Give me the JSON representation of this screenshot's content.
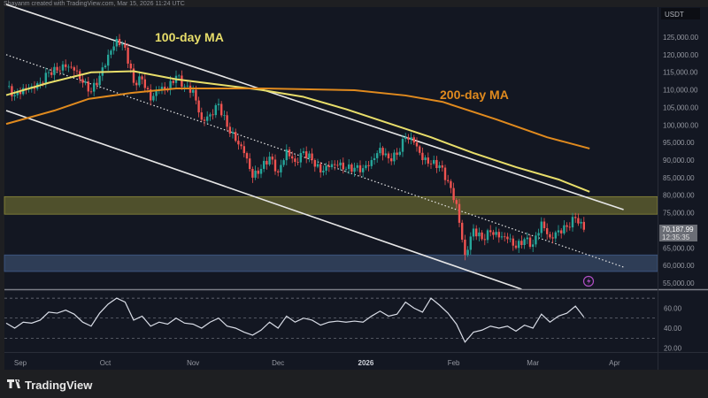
{
  "header": {
    "caption": "Shayanm created with TradingView.com, Mar 15, 2026 11:24 UTC"
  },
  "footer": {
    "brand": "TradingView",
    "logo_icon": "tradingview-logo-icon"
  },
  "colors": {
    "bg": "#131722",
    "up": "#26a69a",
    "down": "#ef5350",
    "ma100": "#e8de6a",
    "ma200": "#e08a1e",
    "resistance_zone": "#5a5a2e",
    "support_zone": "#34445f",
    "trendline": "#e6e6e6"
  },
  "chart_data": {
    "type": "candlestick",
    "symbol_currency": "USDT",
    "day0": "Aug 27, 2025",
    "sample_step_days": 3,
    "closes": [
      111000,
      108500,
      110500,
      111000,
      112000,
      115000,
      115500,
      116500,
      115500,
      112000,
      109500,
      114000,
      120000,
      124500,
      122000,
      112000,
      113000,
      107000,
      110000,
      110000,
      114000,
      111000,
      110000,
      101500,
      103000,
      106000,
      99500,
      95500,
      92000,
      85000,
      87500,
      91000,
      86500,
      93000,
      89500,
      92500,
      90000,
      86500,
      88000,
      88500,
      87500,
      87800,
      87700,
      90000,
      93500,
      90500,
      91500,
      96500,
      95000,
      90000,
      89000,
      88500,
      84000,
      77500,
      63000,
      70500,
      67500,
      69500,
      68000,
      67500,
      65000,
      67500,
      66000,
      72500,
      68000,
      70000,
      71000,
      73500,
      70187.99
    ],
    "moving_averages": [
      {
        "name": "100-day MA",
        "label": "100-day MA",
        "points": [
          [
            0,
            108500
          ],
          [
            15,
            112000
          ],
          [
            30,
            115000
          ],
          [
            45,
            115300
          ],
          [
            60,
            113000
          ],
          [
            75,
            111500
          ],
          [
            90,
            110000
          ],
          [
            105,
            108000
          ],
          [
            120,
            104500
          ],
          [
            135,
            100500
          ],
          [
            150,
            96500
          ],
          [
            165,
            92000
          ],
          [
            180,
            88000
          ],
          [
            195,
            84500
          ],
          [
            206,
            81000
          ]
        ]
      },
      {
        "name": "200-day MA",
        "label": "200-day MA",
        "points": [
          [
            0,
            100300
          ],
          [
            17,
            104100
          ],
          [
            29,
            107400
          ],
          [
            44,
            109100
          ],
          [
            60,
            110400
          ],
          [
            91,
            110400
          ],
          [
            123,
            109900
          ],
          [
            141,
            108400
          ],
          [
            154,
            106600
          ],
          [
            173,
            101600
          ],
          [
            191,
            96500
          ],
          [
            206,
            93300
          ]
        ]
      }
    ],
    "trendlines": [
      {
        "name": "channel-upper",
        "style": "solid",
        "from": [
          0,
          134300
        ],
        "to": [
          218,
          75900
        ]
      },
      {
        "name": "channel-lower",
        "style": "solid",
        "from": [
          0,
          104100
        ],
        "to": [
          182,
          53250
        ]
      },
      {
        "name": "channel-mid",
        "style": "dotted",
        "from": [
          0,
          120000
        ],
        "to": [
          218,
          59550
        ]
      }
    ],
    "zones": [
      {
        "name": "resistance-zone",
        "low": 74600,
        "high": 79600
      },
      {
        "name": "support-zone",
        "low": 58300,
        "high": 63000
      }
    ],
    "price_axis": {
      "ticks": [
        "125,000.00",
        "120,000.00",
        "115,000.00",
        "110,000.00",
        "105,000.00",
        "100,000.00",
        "95,000.00",
        "90,000.00",
        "85,000.00",
        "80,000.00",
        "75,000.00",
        "65,000.00",
        "60,000.00",
        "55,000.00"
      ],
      "tick_values": [
        125000,
        120000,
        115000,
        110000,
        105000,
        100000,
        95000,
        90000,
        85000,
        80000,
        75000,
        65000,
        60000,
        55000
      ]
    },
    "last_price": {
      "price": "70,187.99",
      "countdown": "12:35:35",
      "value": 70187.99
    },
    "time_axis": {
      "labels": [
        "Sep",
        "Oct",
        "Nov",
        "Dec",
        "2026",
        "Feb",
        "Mar",
        "Apr"
      ],
      "label_days": [
        5,
        35,
        66,
        96,
        127,
        158,
        186,
        217
      ]
    },
    "rsi": {
      "values": [
        45,
        40,
        46,
        45,
        48,
        56,
        55,
        58,
        54,
        46,
        42,
        55,
        64,
        70,
        66,
        48,
        52,
        42,
        46,
        44,
        50,
        45,
        44,
        40,
        46,
        50,
        42,
        40,
        36,
        33,
        38,
        46,
        40,
        52,
        46,
        50,
        48,
        43,
        46,
        47,
        46,
        47,
        46,
        52,
        57,
        52,
        54,
        66,
        60,
        56,
        70,
        63,
        55,
        44,
        26,
        36,
        38,
        42,
        40,
        42,
        37,
        43,
        40,
        54,
        46,
        52,
        55,
        62,
        51
      ],
      "levels": [
        70,
        50,
        30
      ],
      "ticks": [
        "60.00",
        "40.00",
        "20.00"
      ],
      "tick_values": [
        60,
        40,
        20
      ]
    }
  }
}
